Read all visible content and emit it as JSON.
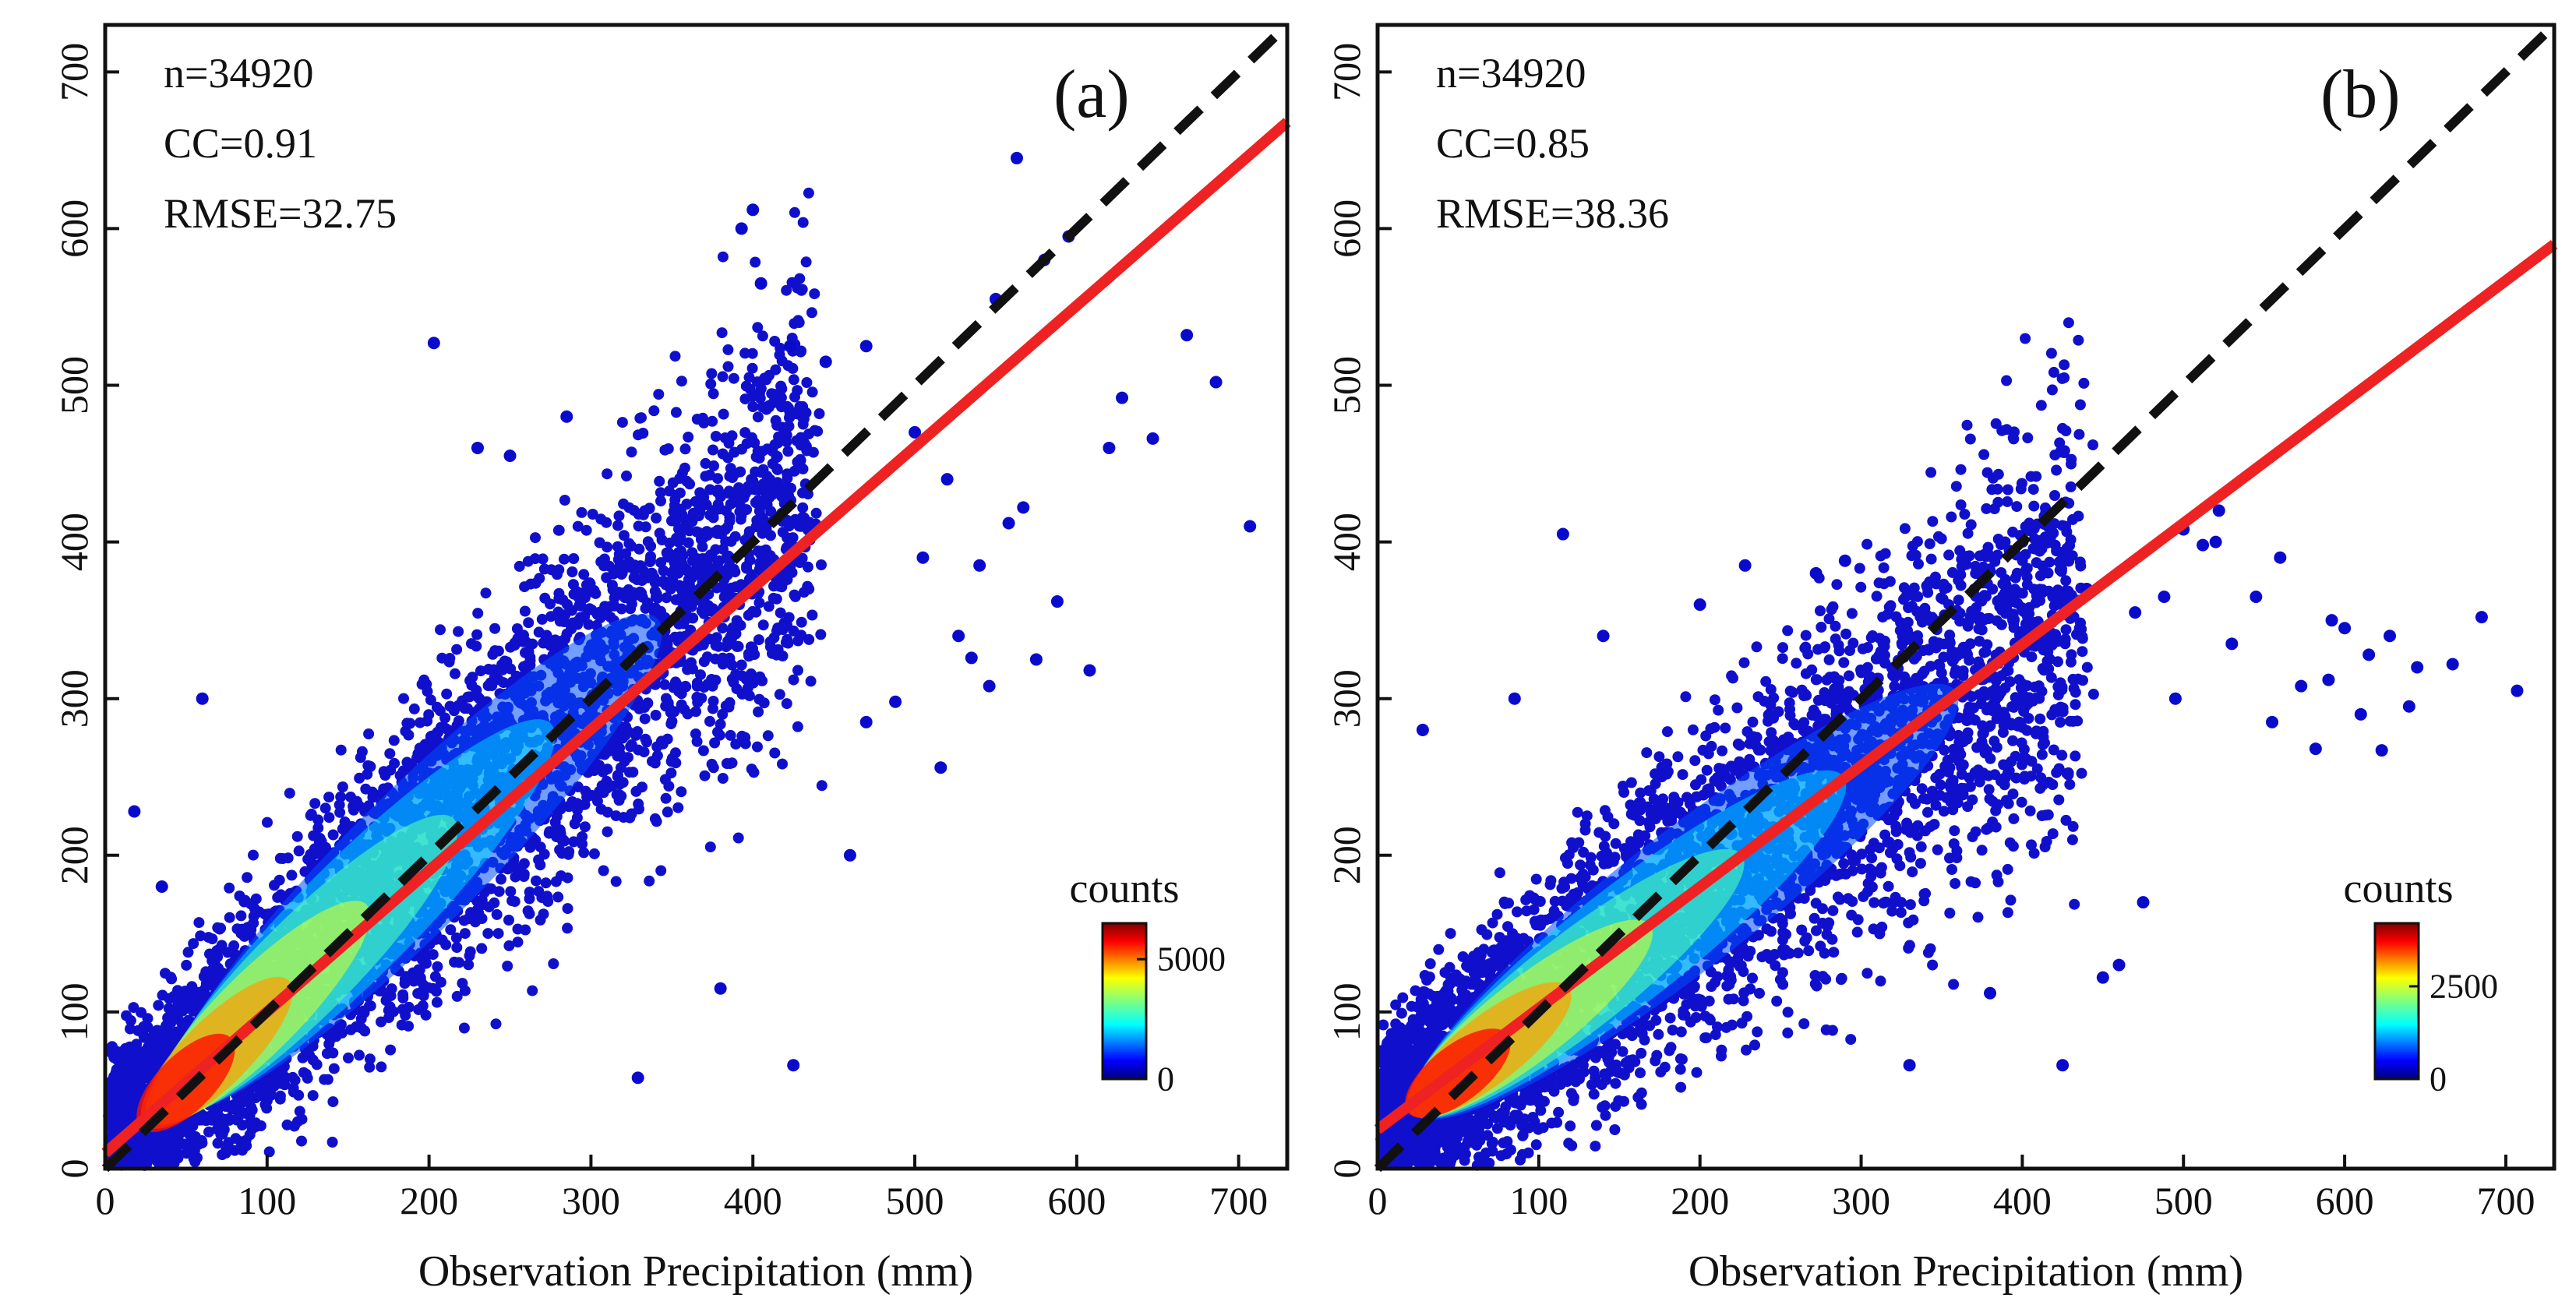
{
  "chart_data": [
    {
      "type": "scatter",
      "panel_label": "(a)",
      "xlabel": "Observation Precipitation (mm)",
      "ylabel": "",
      "xlim": [
        0,
        730
      ],
      "ylim": [
        0,
        730
      ],
      "xticks": [
        0,
        100,
        200,
        300,
        400,
        500,
        600,
        700
      ],
      "yticks": [
        0,
        100,
        200,
        300,
        400,
        500,
        600,
        700
      ],
      "annotations": {
        "n": "n=34920",
        "cc": "CC=0.91",
        "rmse": "RMSE=32.75"
      },
      "reference_line": {
        "name": "1:1 line",
        "x": [
          0,
          730
        ],
        "y": [
          0,
          730
        ],
        "style": "dashed",
        "color": "#111111"
      },
      "fit_line": {
        "name": "linear fit",
        "x": [
          0,
          730
        ],
        "y": [
          10,
          668
        ],
        "color": "#ee2222"
      },
      "density": {
        "slope": 1.0,
        "intercept": 5,
        "spread": 40
      },
      "colorbar": {
        "title": "counts",
        "ticks": [
          0,
          5000
        ],
        "max": 6500,
        "colormap": "jet"
      },
      "sample_points": [
        [
          707,
          410
        ],
        [
          686,
          502
        ],
        [
          668,
          532
        ],
        [
          647,
          466
        ],
        [
          628,
          492
        ],
        [
          620,
          460
        ],
        [
          608,
          318
        ],
        [
          588,
          362
        ],
        [
          575,
          325
        ],
        [
          567,
          422
        ],
        [
          558,
          412
        ],
        [
          546,
          308
        ],
        [
          535,
          326
        ],
        [
          527,
          340
        ],
        [
          516,
          256
        ],
        [
          505,
          390
        ],
        [
          563,
          645
        ],
        [
          400,
          612
        ],
        [
          393,
          600
        ],
        [
          405,
          565
        ],
        [
          203,
          527
        ],
        [
          425,
          66
        ],
        [
          329,
          58
        ],
        [
          380,
          115
        ],
        [
          460,
          200
        ],
        [
          470,
          285
        ],
        [
          488,
          298
        ],
        [
          540,
          385
        ],
        [
          470,
          525
        ],
        [
          445,
          515
        ],
        [
          423,
          525
        ],
        [
          230,
          460
        ],
        [
          250,
          455
        ],
        [
          285,
          480
        ],
        [
          18,
          228
        ],
        [
          60,
          300
        ],
        [
          35,
          180
        ],
        [
          550,
          555
        ],
        [
          580,
          580
        ],
        [
          595,
          595
        ],
        [
          520,
          440
        ],
        [
          500,
          470
        ]
      ]
    },
    {
      "type": "scatter",
      "panel_label": "(b)",
      "xlabel": "Observation Precipitation (mm)",
      "ylabel": "",
      "xlim": [
        0,
        730
      ],
      "ylim": [
        0,
        730
      ],
      "xticks": [
        0,
        100,
        200,
        300,
        400,
        500,
        600,
        700
      ],
      "yticks": [
        0,
        100,
        200,
        300,
        400,
        500,
        600,
        700
      ],
      "annotations": {
        "n": "n=34920",
        "cc": "CC=0.85",
        "rmse": "RMSE=38.36"
      },
      "reference_line": {
        "name": "1:1 line",
        "x": [
          0,
          730
        ],
        "y": [
          0,
          730
        ],
        "style": "dashed",
        "color": "#111111"
      },
      "fit_line": {
        "name": "linear fit",
        "x": [
          0,
          730
        ],
        "y": [
          25,
          590
        ],
        "color": "#ee2222"
      },
      "density": {
        "slope": 0.78,
        "intercept": 22,
        "spread": 40
      },
      "colorbar": {
        "title": "counts",
        "ticks": [
          0,
          2500
        ],
        "max": 4200,
        "colormap": "jet"
      },
      "sample_points": [
        [
          707,
          305
        ],
        [
          685,
          352
        ],
        [
          667,
          322
        ],
        [
          645,
          320
        ],
        [
          623,
          267
        ],
        [
          610,
          290
        ],
        [
          592,
          350
        ],
        [
          582,
          268
        ],
        [
          573,
          308
        ],
        [
          560,
          390
        ],
        [
          545,
          365
        ],
        [
          530,
          335
        ],
        [
          522,
          420
        ],
        [
          512,
          398
        ],
        [
          500,
          408
        ],
        [
          488,
          365
        ],
        [
          470,
          355
        ],
        [
          460,
          130
        ],
        [
          450,
          122
        ],
        [
          425,
          66
        ],
        [
          330,
          66
        ],
        [
          380,
          112
        ],
        [
          290,
          388
        ],
        [
          272,
          380
        ],
        [
          228,
          385
        ],
        [
          115,
          405
        ],
        [
          28,
          280
        ],
        [
          85,
          300
        ],
        [
          140,
          340
        ],
        [
          200,
          360
        ],
        [
          600,
          345
        ],
        [
          628,
          340
        ],
        [
          640,
          295
        ],
        [
          520,
          400
        ],
        [
          495,
          300
        ],
        [
          475,
          170
        ],
        [
          440,
          370
        ],
        [
          555,
          285
        ],
        [
          590,
          312
        ],
        [
          615,
          328
        ]
      ]
    }
  ]
}
